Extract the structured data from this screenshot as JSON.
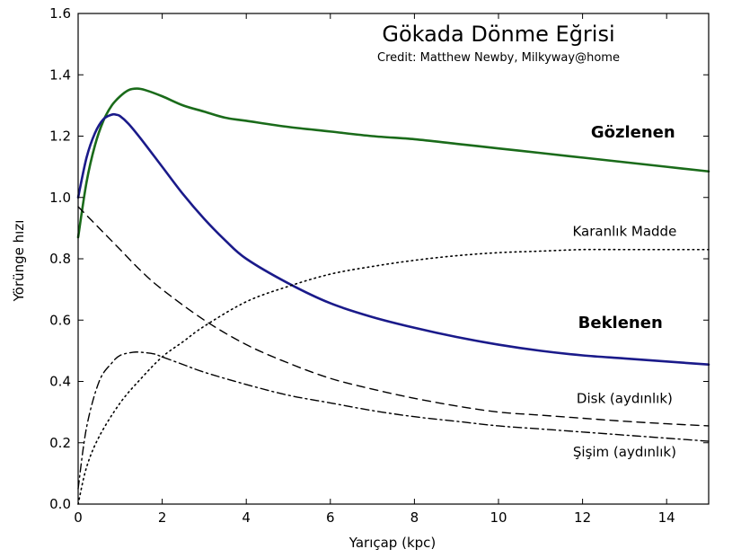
{
  "chart_data": {
    "type": "line",
    "title": "Gökada Dönme Eğrisi",
    "subtitle": "Credit:  Matthew Newby, Milkyway@home",
    "xlabel": "Yarıçap (kpc)",
    "ylabel": "Yörünge hızı",
    "xlim": [
      0,
      15
    ],
    "ylim": [
      0,
      1.6
    ],
    "xticks": [
      "0",
      "2",
      "4",
      "6",
      "8",
      "10",
      "12",
      "14"
    ],
    "yticks": [
      "0.0",
      "0.2",
      "0.4",
      "0.6",
      "0.8",
      "1.0",
      "1.2",
      "1.4",
      "1.6"
    ],
    "grid": false,
    "series": [
      {
        "name": "Gözlenen",
        "color": "#1a6b1a",
        "style": "solid",
        "x": [
          0,
          0.2,
          0.4,
          0.6,
          0.8,
          1.0,
          1.2,
          1.4,
          1.6,
          2.0,
          2.5,
          3.0,
          3.5,
          4.0,
          5.0,
          6.0,
          7.0,
          8.0,
          9.0,
          10.0,
          11.0,
          12.0,
          13.0,
          14.0,
          15.0
        ],
        "y": [
          0.87,
          1.05,
          1.17,
          1.25,
          1.3,
          1.33,
          1.35,
          1.355,
          1.35,
          1.33,
          1.3,
          1.28,
          1.26,
          1.25,
          1.23,
          1.215,
          1.2,
          1.19,
          1.175,
          1.16,
          1.145,
          1.13,
          1.115,
          1.1,
          1.085
        ]
      },
      {
        "name": "Beklenen",
        "color": "#1a1a8a",
        "style": "solid",
        "x": [
          0,
          0.2,
          0.4,
          0.6,
          0.8,
          0.9,
          1.0,
          1.2,
          1.5,
          2.0,
          2.5,
          3.0,
          3.5,
          4.0,
          5.0,
          6.0,
          7.0,
          8.0,
          9.0,
          10.0,
          11.0,
          12.0,
          13.0,
          14.0,
          15.0
        ],
        "y": [
          1.0,
          1.13,
          1.21,
          1.255,
          1.27,
          1.27,
          1.265,
          1.24,
          1.19,
          1.1,
          1.01,
          0.93,
          0.86,
          0.8,
          0.72,
          0.655,
          0.61,
          0.575,
          0.545,
          0.52,
          0.5,
          0.485,
          0.475,
          0.465,
          0.455
        ]
      },
      {
        "name": "Karanlık Madde",
        "color": "#000000",
        "style": "dotted",
        "x": [
          0,
          0.2,
          0.5,
          1.0,
          1.5,
          2.0,
          2.5,
          3.0,
          4.0,
          5.0,
          6.0,
          7.0,
          8.0,
          9.0,
          10.0,
          11.0,
          12.0,
          13.0,
          14.0,
          15.0
        ],
        "y": [
          0.0,
          0.12,
          0.22,
          0.33,
          0.41,
          0.48,
          0.53,
          0.58,
          0.66,
          0.71,
          0.75,
          0.775,
          0.795,
          0.81,
          0.82,
          0.825,
          0.83,
          0.83,
          0.83,
          0.83
        ]
      },
      {
        "name": "Disk (aydınlık)",
        "color": "#000000",
        "style": "dashed",
        "x": [
          0,
          0.5,
          1.0,
          1.5,
          2.0,
          3.0,
          4.0,
          5.0,
          6.0,
          7.0,
          8.0,
          9.0,
          10.0,
          11.0,
          12.0,
          13.0,
          14.0,
          15.0
        ],
        "y": [
          0.97,
          0.9,
          0.83,
          0.76,
          0.7,
          0.6,
          0.52,
          0.46,
          0.41,
          0.375,
          0.345,
          0.32,
          0.3,
          0.29,
          0.28,
          0.27,
          0.262,
          0.255
        ]
      },
      {
        "name": "Şişim (aydınlık)",
        "color": "#000000",
        "style": "dashdot",
        "x": [
          0,
          0.2,
          0.5,
          0.8,
          1.0,
          1.3,
          1.5,
          1.8,
          2.0,
          2.5,
          3.0,
          4.0,
          5.0,
          6.0,
          7.0,
          8.0,
          9.0,
          10.0,
          11.0,
          12.0,
          13.0,
          14.0,
          15.0
        ],
        "y": [
          0.05,
          0.25,
          0.4,
          0.46,
          0.485,
          0.495,
          0.495,
          0.49,
          0.48,
          0.455,
          0.43,
          0.39,
          0.355,
          0.33,
          0.305,
          0.285,
          0.27,
          0.255,
          0.245,
          0.235,
          0.225,
          0.215,
          0.205
        ]
      }
    ],
    "annotations": [
      {
        "text": "Gözlenen",
        "x": 13.2,
        "y": 1.195,
        "bold": true
      },
      {
        "text": "Beklenen",
        "x": 12.9,
        "y": 0.575,
        "bold": true
      },
      {
        "text": "Karanlık Madde",
        "x": 13.0,
        "y": 0.875,
        "bold": false
      },
      {
        "text": "Disk (aydınlık)",
        "x": 13.0,
        "y": 0.33,
        "bold": false
      },
      {
        "text": "Şişim (aydınlık)",
        "x": 13.0,
        "y": 0.155,
        "bold": false
      }
    ]
  }
}
